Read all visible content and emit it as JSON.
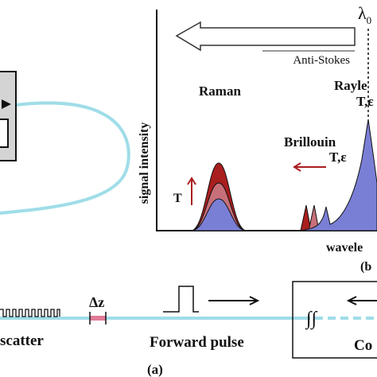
{
  "spectrum": {
    "lambda_symbol": "λ",
    "lambda_subscript": "0",
    "arrow_label": "Anti-Stokes",
    "rayleigh_label": "Rayle",
    "rayleigh_sensitivity": "T,ε",
    "raman_label": "Raman",
    "brillouin_label": "Brillouin",
    "brillouin_sensitivity": "T,ε",
    "y_axis_label": "signal intensity",
    "temperature_label": "T",
    "x_axis_label": "wavele",
    "panel_label": "(b"
  },
  "setup": {
    "backscatter_label": "scatter",
    "resolution_label": "Δz",
    "pulse_label": "Forward pulse",
    "detector_label": "Co",
    "integral_symbol": "∫∫",
    "panel_label": "(a)"
  }
}
